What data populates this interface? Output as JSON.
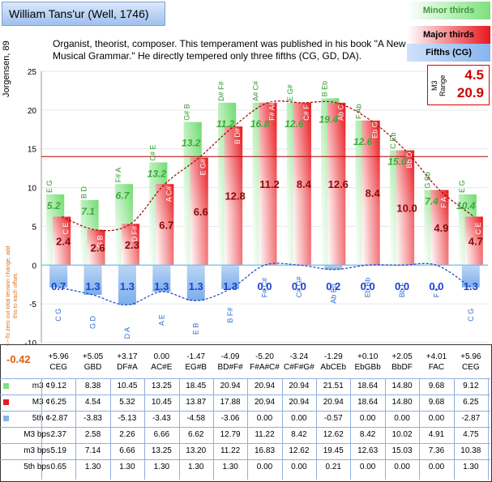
{
  "title": "William Tans'ur (Well, 1746)",
  "description": "Organist, theorist, composer. This temperament was published in his book \"A New Musical Grammar.\" He directly tempered only three fifths (CG, GD, DA).",
  "legend": {
    "minor": "Minor thirds",
    "major": "Major thirds",
    "fifths": "Fifths (CG)"
  },
  "m3_range": {
    "label": "M3 Range",
    "min": "4.5",
    "max": "20.9"
  },
  "y_axis_label": "Jorgensen, 89",
  "total_note": "<--To zero out total tension change, add this to each offset.",
  "total_value": "-0.42",
  "colors": {
    "major": "#e8181e",
    "minor": "#6fdc6f",
    "fifth": "#7aaeea",
    "hline": "#b00000",
    "grid": "#e6e6e6"
  },
  "chart_data": {
    "type": "bar",
    "ylim": [
      -10,
      25
    ],
    "yticks": [
      "-10",
      "-5",
      "0",
      "5",
      "10",
      "15",
      "20",
      "25"
    ],
    "reference_line": 14,
    "categories": [
      "CEG",
      "GBD",
      "DF#A",
      "AC#E",
      "EG#B",
      "BD#F#",
      "F#A#C#",
      "C#F#G#",
      "AbCEb",
      "EbGBb",
      "BbDF",
      "FAC",
      "CEG"
    ],
    "offsets": [
      "+5.96",
      "+5.05",
      "+3.17",
      "0.00",
      "-1.47",
      "-4.09",
      "-5.20",
      "-3.24",
      "-1.29",
      "+0.10",
      "+2.05",
      "+4.01",
      "+5.96"
    ],
    "minor_top_labels": [
      "E G",
      "B D",
      "F# A",
      "C# E",
      "G# B",
      "D# F#",
      "A# C#",
      "E G#",
      "B Eb",
      "F Ab",
      "C Eb",
      "G Bb",
      "E G"
    ],
    "major_top_labels": [
      "C E",
      "G B",
      "D F#",
      "A C#",
      "E G#",
      "B D#",
      "F# A#",
      "C# F",
      "Ab C",
      "Eb G",
      "Bb D",
      "F A",
      "C E"
    ],
    "fifth_labels": [
      "C G",
      "G D",
      "D A",
      "A E",
      "E B",
      "B F#",
      "F# C#",
      "C# G#",
      "Ab Eb",
      "Eb Bb",
      "Bb F",
      "F C",
      "C G"
    ],
    "series": [
      {
        "name": "Minor thirds",
        "values": [
          9.12,
          8.38,
          10.45,
          13.25,
          18.45,
          20.94,
          20.94,
          20.94,
          21.51,
          18.64,
          14.8,
          9.68,
          9.12
        ],
        "bar_labels": [
          "5.2",
          "7.1",
          "6.7",
          "13.2",
          "13.2",
          "11.2",
          "16.8",
          "12.6",
          "19.4",
          "12.6",
          "15.0",
          "7.4",
          "10.4"
        ]
      },
      {
        "name": "Major thirds",
        "values": [
          6.25,
          4.54,
          5.32,
          10.45,
          13.87,
          17.88,
          20.94,
          20.94,
          20.94,
          18.64,
          14.8,
          9.68,
          6.25
        ],
        "bar_labels": [
          "2.4",
          "2.6",
          "2.3",
          "6.7",
          "6.6",
          "12.8",
          "11.2",
          "8.4",
          "12.6",
          "8.4",
          "10.0",
          "4.9",
          "4.7"
        ]
      },
      {
        "name": "Fifths (CG)",
        "values": [
          -2.87,
          -3.83,
          -5.13,
          -3.43,
          -4.58,
          -3.06,
          0.0,
          0.0,
          -0.57,
          0.0,
          0.0,
          0.0,
          -2.87
        ],
        "bar_labels": [
          "0.7",
          "1.3",
          "1.3",
          "1.3",
          "1.3",
          "1.3",
          "0.0",
          "0.0",
          "0.2",
          "0.0",
          "0.0",
          "0.0",
          "1.3"
        ]
      }
    ]
  },
  "table": {
    "rows": [
      {
        "label": "m3 ¢",
        "swatch": "minor",
        "values": [
          "9.12",
          "8.38",
          "10.45",
          "13.25",
          "18.45",
          "20.94",
          "20.94",
          "20.94",
          "21.51",
          "18.64",
          "14.80",
          "9.68",
          "9.12"
        ]
      },
      {
        "label": "M3 ¢",
        "swatch": "major",
        "values": [
          "6.25",
          "4.54",
          "5.32",
          "10.45",
          "13.87",
          "17.88",
          "20.94",
          "20.94",
          "20.94",
          "18.64",
          "14.80",
          "9.68",
          "6.25"
        ]
      },
      {
        "label": "5th ¢",
        "swatch": "fifth",
        "values": [
          "-2.87",
          "-3.83",
          "-5.13",
          "-3.43",
          "-4.58",
          "-3.06",
          "0.00",
          "0.00",
          "-0.57",
          "0.00",
          "0.00",
          "0.00",
          "-2.87"
        ]
      },
      {
        "label": "M3 bps",
        "swatch": "",
        "values": [
          "2.37",
          "2.58",
          "2.26",
          "6.66",
          "6.62",
          "12.79",
          "11.22",
          "8.42",
          "12.62",
          "8.42",
          "10.02",
          "4.91",
          "4.75"
        ]
      },
      {
        "label": "m3 bps",
        "swatch": "",
        "values": [
          "5.19",
          "7.14",
          "6.66",
          "13.25",
          "13.20",
          "11.22",
          "16.83",
          "12.62",
          "19.45",
          "12.63",
          "15.03",
          "7.36",
          "10.38"
        ]
      },
      {
        "label": "5th bps",
        "swatch": "",
        "values": [
          "0.65",
          "1.30",
          "1.30",
          "1.30",
          "1.30",
          "1.30",
          "0.00",
          "0.00",
          "0.21",
          "0.00",
          "0.00",
          "0.00",
          "1.30"
        ]
      }
    ]
  }
}
